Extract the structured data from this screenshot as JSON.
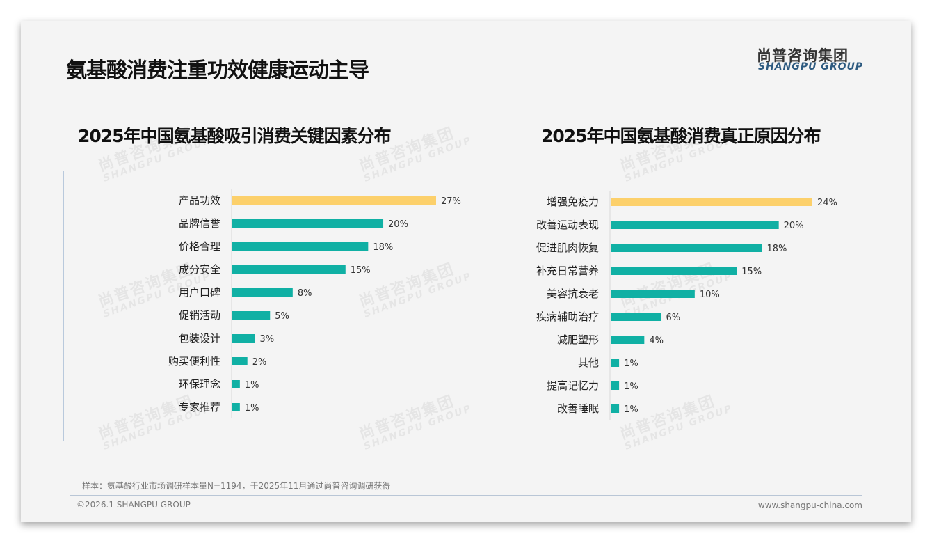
{
  "header": {
    "title": "氨基酸消费注重功效健康运动主导",
    "logo_cn": "尚普咨询集团",
    "logo_en": "SHANGPU GROUP"
  },
  "watermark": {
    "cn": "尚普咨询集团",
    "en": "SHANGPU GROUP"
  },
  "colors": {
    "highlight": "#fcd06b",
    "bar": "#10b0a4"
  },
  "chart_data": [
    {
      "type": "bar",
      "orientation": "horizontal",
      "title": "2025年中国氨基酸吸引消费关键因素分布",
      "unit": "%",
      "categories": [
        "产品功效",
        "品牌信誉",
        "价格合理",
        "成分安全",
        "用户口碑",
        "促销活动",
        "包装设计",
        "购买便利性",
        "环保理念",
        "专家推荐"
      ],
      "values": [
        27,
        20,
        18,
        15,
        8,
        5,
        3,
        2,
        1,
        1
      ],
      "xlim": [
        0,
        27
      ]
    },
    {
      "type": "bar",
      "orientation": "horizontal",
      "title": "2025年中国氨基酸消费真正原因分布",
      "unit": "%",
      "categories": [
        "增强免疫力",
        "改善运动表现",
        "促进肌肉恢复",
        "补充日常营养",
        "美容抗衰老",
        "疾病辅助治疗",
        "减肥塑形",
        "其他",
        "提高记忆力",
        "改善睡眠"
      ],
      "values": [
        24,
        20,
        18,
        15,
        10,
        6,
        4,
        1,
        1,
        1
      ],
      "xlim": [
        0,
        24
      ]
    }
  ],
  "footer": {
    "note": "样本：氨基酸行业市场调研样本量N=1194，于2025年11月通过尚普咨询调研获得",
    "copyright": "©2026.1 SHANGPU GROUP",
    "website": "www.shangpu-china.com"
  }
}
